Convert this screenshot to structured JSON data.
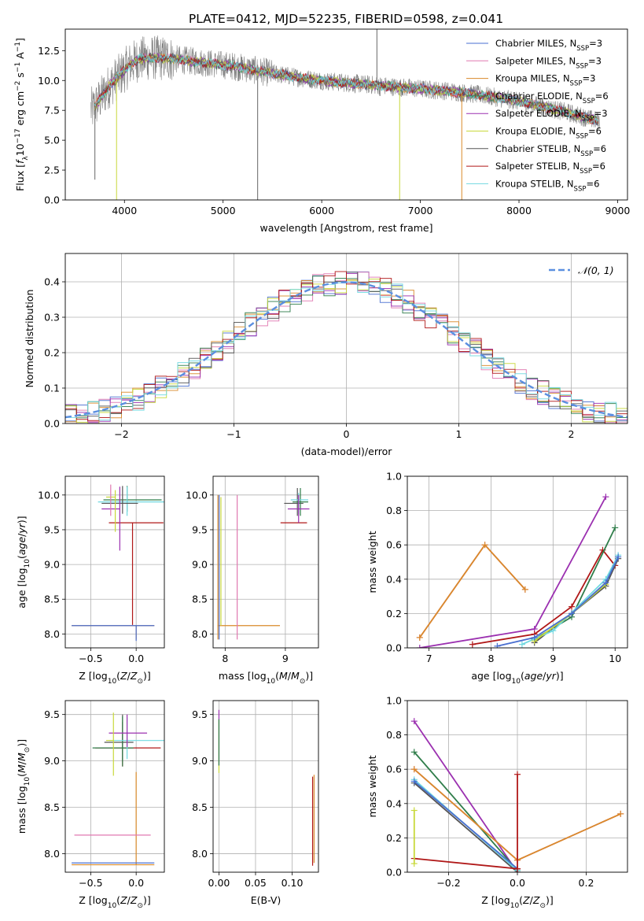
{
  "figure_title": "PLATE=0412, MJD=52235, FIBERID=0598, z=0.041",
  "colors": {
    "chabrier_miles": "#4a6fd0",
    "salpeter_miles": "#e078b0",
    "kroupa_miles": "#d98a2a",
    "chabrier_elodie": "#2f7d4a",
    "salpeter_elodie": "#9b30b0",
    "kroupa_elodie": "#c8d83a",
    "chabrier_stelib": "#555555",
    "salpeter_stelib": "#b01818",
    "kroupa_stelib": "#70d8e0",
    "data": "#808080",
    "normal": "#5b8fe0"
  },
  "chart_data": [
    {
      "id": "spectrum",
      "type": "line",
      "title": "PLATE=0412, MJD=52235, FIBERID=0598, z=0.041",
      "xlabel": "wavelength [Angstrom, rest frame]",
      "ylabel": "Flux [f_λ 10^-17 erg cm^-2 s^-1 A^-1]",
      "xlim": [
        3400,
        9100
      ],
      "ylim": [
        0,
        14.3
      ],
      "xticks": [
        "4000",
        "5000",
        "6000",
        "7000",
        "8000",
        "9000"
      ],
      "yticks": [
        "0.0",
        "2.5",
        "5.0",
        "7.5",
        "10.0",
        "12.5"
      ],
      "legend_position": "top-right",
      "legend": [
        {
          "key": "chabrier_miles",
          "label": "Chabrier MILES, N",
          "sub": "SSP",
          "tail": "=3"
        },
        {
          "key": "salpeter_miles",
          "label": "Salpeter MILES, N",
          "sub": "SSP",
          "tail": "=3"
        },
        {
          "key": "kroupa_miles",
          "label": "Kroupa MILES, N",
          "sub": "SSP",
          "tail": "=3"
        },
        {
          "key": "chabrier_elodie",
          "label": "Chabrier ELODIE, N",
          "sub": "SSP",
          "tail": "=6"
        },
        {
          "key": "salpeter_elodie",
          "label": "Salpeter ELODIE, N",
          "sub": "SSP",
          "tail": "=3"
        },
        {
          "key": "kroupa_elodie",
          "label": "Kroupa ELODIE, N",
          "sub": "SSP",
          "tail": "=6"
        },
        {
          "key": "chabrier_stelib",
          "label": "Chabrier STELIB, N",
          "sub": "SSP",
          "tail": "=6"
        },
        {
          "key": "salpeter_stelib",
          "label": "Salpeter STELIB, N",
          "sub": "SSP",
          "tail": "=6"
        },
        {
          "key": "kroupa_stelib",
          "label": "Kroupa STELIB, N",
          "sub": "SSP",
          "tail": "=6"
        }
      ],
      "continuum": {
        "x": [
          3680,
          3750,
          3850,
          3950,
          4050,
          4150,
          4300,
          4500,
          4700,
          4900,
          5100,
          5300,
          5500,
          5800,
          6100,
          6400,
          6700,
          7000,
          7300,
          7600,
          7900,
          8200,
          8500,
          8800
        ],
        "y": [
          7.6,
          8.4,
          9.6,
          10.4,
          11.3,
          11.8,
          11.9,
          11.8,
          11.6,
          11.4,
          11.2,
          10.9,
          10.6,
          10.2,
          9.9,
          9.7,
          9.5,
          9.3,
          9.1,
          8.8,
          8.4,
          7.9,
          7.3,
          6.6
        ]
      },
      "data_range": [
        3660,
        8820
      ],
      "model_range": [
        3700,
        8800
      ],
      "dropouts": [
        {
          "key": "kroupa_elodie",
          "x": 3920
        },
        {
          "key": "kroupa_elodie",
          "x": 6790
        },
        {
          "key": "kroupa_miles",
          "x": 7420
        }
      ],
      "data_spikes": [
        {
          "x": 3700,
          "y": 1.7
        },
        {
          "x": 5350,
          "y": 0.0
        },
        {
          "x": 6560,
          "y": 14.3
        },
        {
          "x": 6590,
          "y": 8.7
        }
      ]
    },
    {
      "id": "residual_histogram",
      "type": "histogram",
      "xlabel": "(data-model)/error",
      "ylabel": "Normed distribution",
      "xlim": [
        -2.5,
        2.5
      ],
      "ylim": [
        0,
        0.48
      ],
      "xticks": [
        "−2",
        "−1",
        "0",
        "1",
        "2"
      ],
      "yticks": [
        "0.0",
        "0.1",
        "0.2",
        "0.3",
        "0.4"
      ],
      "bin_width": 0.1,
      "grid": true,
      "legend_position": "top-right",
      "normal_label": "𝒩(0, 1)",
      "normal_mean": 0,
      "normal_sigma": 1
    },
    {
      "id": "age_vs_Z",
      "type": "errorbar",
      "xlabel": "Z [log10(Z/Z⊙)]",
      "ylabel": "age [log10(age/yr)]",
      "xlim": [
        -0.78,
        0.31
      ],
      "ylim": [
        7.8,
        10.27
      ],
      "xticks": [
        "−0.5",
        "0.0"
      ],
      "yticks": [
        "8.0",
        "8.5",
        "9.0",
        "9.5",
        "10.0"
      ],
      "grid": true,
      "points": [
        {
          "key": "kroupa_miles",
          "x": 0.0,
          "xerr": [
            0.71,
            0.2
          ],
          "y": 8.12,
          "yerr": [
            0.2,
            0.0
          ]
        },
        {
          "key": "chabrier_miles",
          "x": 0.0,
          "xerr": [
            0.71,
            0.2
          ],
          "y": 8.12,
          "yerr": [
            0.22,
            0.0
          ]
        },
        {
          "key": "salpeter_stelib",
          "x": -0.04,
          "xerr": [
            0.26,
            0.34
          ],
          "y": 9.6,
          "yerr": [
            1.47,
            0.0
          ]
        },
        {
          "key": "chabrier_elodie",
          "x": -0.1,
          "xerr": [
            0.26,
            0.38
          ],
          "y": 9.93,
          "yerr": [
            0.17,
            0.2
          ]
        },
        {
          "key": "kroupa_stelib",
          "x": -0.1,
          "xerr": [
            0.32,
            0.42
          ],
          "y": 9.9,
          "yerr": [
            0.2,
            0.22
          ]
        },
        {
          "key": "chabrier_stelib",
          "x": -0.15,
          "xerr": [
            0.23,
            0.17
          ],
          "y": 9.88,
          "yerr": [
            0.15,
            0.25
          ]
        },
        {
          "key": "salpeter_elodie",
          "x": -0.18,
          "xerr": [
            0.2,
            0.0
          ],
          "y": 9.8,
          "yerr": [
            0.6,
            0.32
          ]
        },
        {
          "key": "kroupa_elodie",
          "x": -0.23,
          "xerr": [
            0.1,
            0.0
          ],
          "y": 9.97,
          "yerr": [
            0.5,
            0.1
          ]
        },
        {
          "key": "salpeter_miles",
          "x": -0.28,
          "xerr": [
            0.0,
            0.0
          ],
          "y": 9.9,
          "yerr": [
            0.2,
            0.25
          ]
        }
      ]
    },
    {
      "id": "age_vs_mass",
      "type": "errorbar",
      "xlabel": "mass [log10(M/M⊙)]",
      "ylabel": "",
      "xlim": [
        7.8,
        9.55
      ],
      "ylim": [
        7.8,
        10.27
      ],
      "xticks": [
        "8",
        "9"
      ],
      "yticks": [
        "8.0",
        "8.5",
        "9.0",
        "9.5",
        "10.0"
      ],
      "grid": true,
      "points": [
        {
          "key": "kroupa_miles",
          "x": 7.88,
          "xerr": [
            0.0,
            1.03
          ],
          "y": 8.12,
          "yerr": [
            0.2,
            1.88
          ]
        },
        {
          "key": "chabrier_miles",
          "x": 7.9,
          "xerr": [
            0.0,
            0.0
          ],
          "y": 8.12,
          "yerr": [
            0.2,
            1.88
          ]
        },
        {
          "key": "kroupa_elodie",
          "x": 7.93,
          "xerr": [
            0.0,
            0.0
          ],
          "y": 8.12,
          "yerr": [
            0.0,
            1.85
          ]
        },
        {
          "key": "salpeter_miles",
          "x": 8.2,
          "xerr": [
            0.0,
            0.0
          ],
          "y": 8.12,
          "yerr": [
            0.2,
            1.88
          ]
        },
        {
          "key": "salpeter_stelib",
          "x": 9.14,
          "xerr": [
            0.22,
            0.22
          ],
          "y": 9.6,
          "yerr": [
            0.0,
            0.0
          ]
        },
        {
          "key": "chabrier_stelib",
          "x": 9.2,
          "xerr": [
            0.22,
            0.1
          ],
          "y": 9.88,
          "yerr": [
            0.18,
            0.22
          ]
        },
        {
          "key": "chabrier_elodie",
          "x": 9.25,
          "xerr": [
            0.13,
            0.13
          ],
          "y": 9.9,
          "yerr": [
            0.2,
            0.2
          ]
        },
        {
          "key": "kroupa_stelib",
          "x": 9.22,
          "xerr": [
            0.13,
            0.16
          ],
          "y": 9.93,
          "yerr": [
            0.2,
            0.1
          ]
        },
        {
          "key": "salpeter_elodie",
          "x": 9.22,
          "xerr": [
            0.18,
            0.18
          ],
          "y": 9.8,
          "yerr": [
            0.2,
            0.2
          ]
        }
      ]
    },
    {
      "id": "weight_vs_age",
      "type": "line",
      "xlabel": "age [log10(age/yr)]",
      "ylabel": "mass weight",
      "xlim": [
        6.65,
        10.2
      ],
      "ylim": [
        0,
        1.0
      ],
      "xticks": [
        "7",
        "8",
        "9",
        "10"
      ],
      "yticks": [
        "0.0",
        "0.2",
        "0.4",
        "0.6",
        "0.8",
        "1.0"
      ],
      "grid": true,
      "series": [
        {
          "key": "salpeter_miles",
          "x": [
            6.85,
            7.9,
            8.55
          ],
          "y": [
            0.06,
            0.6,
            0.34
          ]
        },
        {
          "key": "kroupa_miles",
          "x": [
            6.85,
            7.9,
            8.55
          ],
          "y": [
            0.06,
            0.6,
            0.34
          ]
        },
        {
          "key": "salpeter_elodie",
          "x": [
            6.85,
            8.7,
            9.85
          ],
          "y": [
            0.0,
            0.11,
            0.88
          ]
        },
        {
          "key": "salpeter_stelib",
          "x": [
            7.7,
            8.7,
            9.3,
            9.8,
            10.0
          ],
          "y": [
            0.02,
            0.08,
            0.24,
            0.57,
            0.48
          ]
        },
        {
          "key": "chabrier_elodie",
          "x": [
            8.7,
            9.3,
            10.0
          ],
          "y": [
            0.05,
            0.18,
            0.7
          ]
        },
        {
          "key": "chabrier_stelib",
          "x": [
            8.7,
            9.3,
            9.85,
            10.05
          ],
          "y": [
            0.03,
            0.2,
            0.36,
            0.52
          ]
        },
        {
          "key": "kroupa_stelib",
          "x": [
            8.5,
            9.0,
            9.85,
            10.05
          ],
          "y": [
            0.02,
            0.1,
            0.4,
            0.54
          ]
        },
        {
          "key": "kroupa_elodie",
          "x": [
            8.7,
            9.3,
            9.85
          ],
          "y": [
            0.04,
            0.2,
            0.37
          ]
        },
        {
          "key": "chabrier_miles",
          "x": [
            8.1,
            8.7,
            9.3,
            9.85,
            10.05
          ],
          "y": [
            0.01,
            0.06,
            0.2,
            0.38,
            0.53
          ]
        }
      ]
    },
    {
      "id": "mass_vs_Z",
      "type": "errorbar",
      "xlabel": "Z [log10(Z/Z⊙)]",
      "ylabel": "mass [log10(M/M⊙)]",
      "xlim": [
        -0.78,
        0.31
      ],
      "ylim": [
        7.8,
        9.65
      ],
      "xticks": [
        "−0.5",
        "0.0"
      ],
      "yticks": [
        "8.0",
        "8.5",
        "9.0",
        "9.5"
      ],
      "grid": true,
      "points": [
        {
          "key": "kroupa_miles",
          "x": 0.0,
          "xerr": [
            0.71,
            0.2
          ],
          "y": 7.88,
          "yerr": [
            0.0,
            1.0
          ]
        },
        {
          "key": "chabrier_miles",
          "x": 0.0,
          "xerr": [
            0.71,
            0.2
          ],
          "y": 7.9,
          "yerr": [
            0.0,
            0.0
          ]
        },
        {
          "key": "salpeter_miles",
          "x": -0.04,
          "xerr": [
            0.64,
            0.2
          ],
          "y": 8.2,
          "yerr": [
            0.0,
            0.0
          ]
        },
        {
          "key": "salpeter_stelib",
          "x": -0.15,
          "xerr": [
            0.3,
            0.42
          ],
          "y": 9.14,
          "yerr": [
            0.2,
            0.28
          ]
        },
        {
          "key": "chabrier_stelib",
          "x": -0.15,
          "xerr": [
            0.2,
            0.12
          ],
          "y": 9.2,
          "yerr": [
            0.2,
            0.3
          ]
        },
        {
          "key": "chabrier_elodie",
          "x": -0.15,
          "xerr": [
            0.33,
            0.12
          ],
          "y": 9.14,
          "yerr": [
            0.2,
            0.34
          ]
        },
        {
          "key": "kroupa_stelib",
          "x": -0.1,
          "xerr": [
            0.2,
            0.42
          ],
          "y": 9.22,
          "yerr": [
            0.2,
            0.25
          ]
        },
        {
          "key": "salpeter_elodie",
          "x": -0.1,
          "xerr": [
            0.2,
            0.22
          ],
          "y": 9.3,
          "yerr": [
            0.15,
            0.2
          ]
        },
        {
          "key": "kroupa_elodie",
          "x": -0.25,
          "xerr": [
            0.08,
            0.0
          ],
          "y": 9.22,
          "yerr": [
            0.38,
            0.3
          ]
        }
      ]
    },
    {
      "id": "mass_vs_ebv",
      "type": "errorbar",
      "xlabel": "E(B-V)",
      "ylabel": "",
      "xlim": [
        -0.008,
        0.136
      ],
      "ylim": [
        7.8,
        9.65
      ],
      "xticks": [
        "0.00",
        "0.05",
        "0.10"
      ],
      "yticks": [
        "8.0",
        "8.5",
        "9.0",
        "9.5"
      ],
      "grid": true,
      "points": [
        {
          "key": "salpeter_elodie",
          "x": 0.0,
          "xerr": [
            0.0,
            0.0
          ],
          "y": 9.3,
          "yerr": [
            0.35,
            0.25
          ]
        },
        {
          "key": "kroupa_elodie",
          "x": 0.0,
          "xerr": [
            0.0,
            0.0
          ],
          "y": 9.22,
          "yerr": [
            0.35,
            0.22
          ]
        },
        {
          "key": "chabrier_elodie",
          "x": 0.0,
          "xerr": [
            0.0,
            0.0
          ],
          "y": 9.2,
          "yerr": [
            0.25,
            0.25
          ]
        },
        {
          "key": "salpeter_stelib",
          "x": 0.128,
          "xerr": [
            0.0,
            0.0
          ],
          "y": 8.35,
          "yerr": [
            0.48,
            0.48
          ]
        },
        {
          "key": "kroupa_miles",
          "x": 0.13,
          "xerr": [
            0.0,
            0.0
          ],
          "y": 8.35,
          "yerr": [
            0.45,
            0.5
          ]
        }
      ]
    },
    {
      "id": "weight_vs_Z",
      "type": "line",
      "xlabel": "Z [log10(Z/Z⊙)]",
      "ylabel": "mass weight",
      "xlim": [
        -0.32,
        0.32
      ],
      "ylim": [
        0,
        1.0
      ],
      "xticks": [
        "−0.2",
        "0.0",
        "0.2"
      ],
      "yticks": [
        "0.0",
        "0.2",
        "0.4",
        "0.6",
        "0.8",
        "1.0"
      ],
      "grid": true,
      "series": [
        {
          "key": "salpeter_elodie",
          "x": [
            -0.3,
            0.0
          ],
          "y": [
            0.88,
            0.0
          ]
        },
        {
          "key": "chabrier_elodie",
          "x": [
            -0.3,
            0.0
          ],
          "y": [
            0.7,
            0.01
          ]
        },
        {
          "key": "salpeter_miles",
          "x": [
            -0.3,
            0.0,
            0.3
          ],
          "y": [
            0.6,
            0.07,
            0.34
          ]
        },
        {
          "key": "kroupa_miles",
          "x": [
            -0.3,
            0.0,
            0.3
          ],
          "y": [
            0.6,
            0.07,
            0.34
          ]
        },
        {
          "key": "chabrier_stelib",
          "x": [
            -0.3,
            0.0
          ],
          "y": [
            0.52,
            0.0
          ]
        },
        {
          "key": "kroupa_stelib",
          "x": [
            -0.3,
            0.0
          ],
          "y": [
            0.54,
            0.01
          ]
        },
        {
          "key": "chabrier_miles",
          "x": [
            -0.3,
            0.0
          ],
          "y": [
            0.53,
            0.02
          ]
        },
        {
          "key": "salpeter_stelib",
          "x": [
            -0.3,
            0.0
          ],
          "y": [
            0.08,
            0.02
          ]
        },
        {
          "key": "salpeter_stelib",
          "x": [
            0.0,
            0.0
          ],
          "y": [
            0.57,
            0.02
          ]
        },
        {
          "key": "kroupa_elodie",
          "x": [
            -0.3,
            -0.3
          ],
          "y": [
            0.36,
            0.05
          ]
        }
      ]
    }
  ]
}
